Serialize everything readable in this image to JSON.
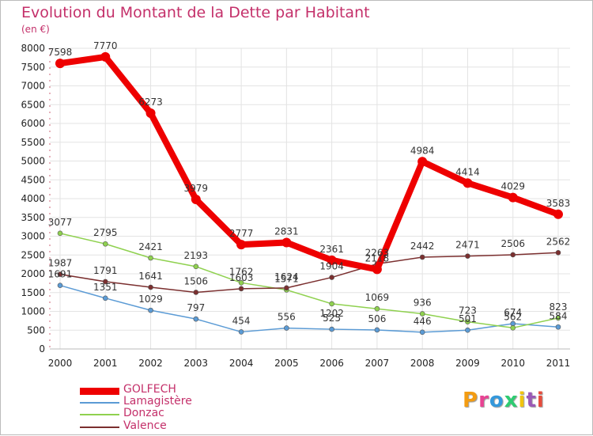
{
  "title": "Evolution du Montant de la Dette par Habitant",
  "subtitle": "(en €)",
  "logo_text": "Proxiti",
  "chart_data": {
    "type": "line",
    "title": "Evolution du Montant de la Dette par Habitant",
    "subtitle": "(en €)",
    "ylim": [
      0,
      8000
    ],
    "yticks": [
      0,
      500,
      1000,
      1500,
      2000,
      2500,
      3000,
      3500,
      4000,
      4500,
      5000,
      5500,
      6000,
      6500,
      7000,
      7500,
      8000
    ],
    "x": [
      "2000",
      "2001",
      "2002",
      "2003",
      "2004",
      "2005",
      "2006",
      "2007",
      "2008",
      "2009",
      "2010",
      "2011"
    ],
    "grid": true,
    "legend_placement": "bottom-left",
    "series": [
      {
        "name": "GOLFECH",
        "color": "#ee0000",
        "values": [
          7598,
          7770,
          6273,
          3979,
          2777,
          2831,
          2361,
          2118,
          4984,
          4414,
          4029,
          3583
        ]
      },
      {
        "name": "Lamagistère",
        "color": "#5b9bd5",
        "values": [
          1691,
          1351,
          1029,
          797,
          454,
          556,
          525,
          506,
          446,
          501,
          674,
          584
        ]
      },
      {
        "name": "Donzac",
        "color": "#8fd14f",
        "values": [
          3077,
          2795,
          2421,
          2193,
          1762,
          1571,
          1202,
          1069,
          936,
          723,
          562,
          823
        ]
      },
      {
        "name": "Valence",
        "color": "#7b2f2f",
        "values": [
          1987,
          1791,
          1641,
          1506,
          1603,
          1624,
          1904,
          2263,
          2442,
          2471,
          2506,
          2562
        ]
      }
    ]
  }
}
